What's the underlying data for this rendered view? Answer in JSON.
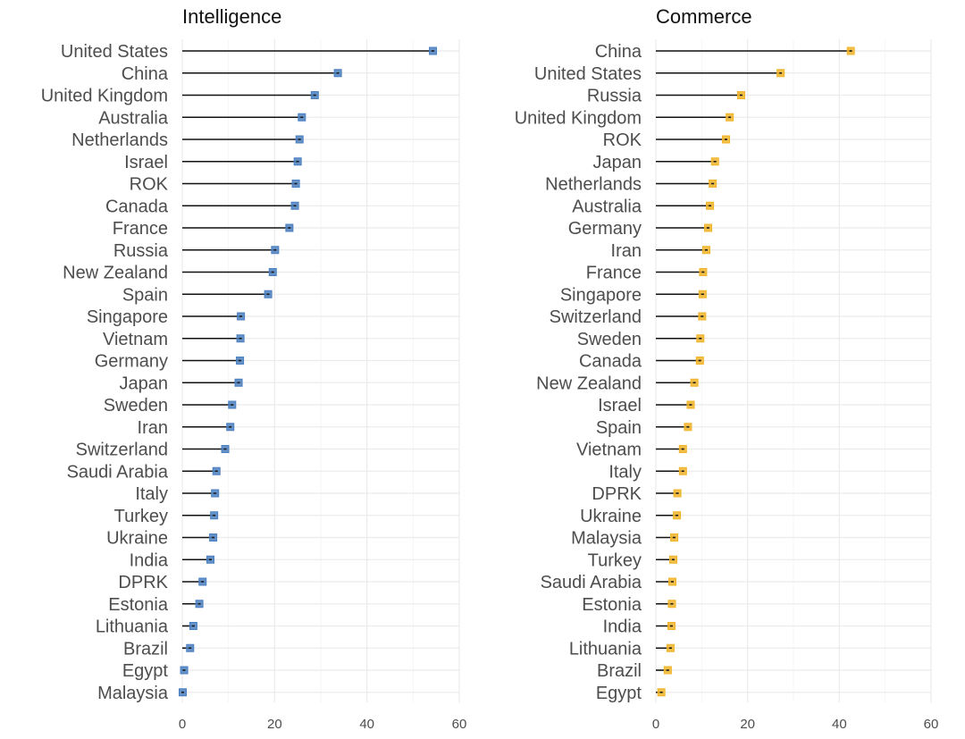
{
  "chart_data": [
    {
      "type": "lollipop",
      "title": "Intelligence",
      "xlabel": "",
      "ylabel": "",
      "xlim": [
        0,
        60
      ],
      "x_ticks": [
        0,
        20,
        40,
        60
      ],
      "grid": true,
      "color": "#4a7fc0",
      "categories": [
        "United States",
        "China",
        "United Kingdom",
        "Australia",
        "Netherlands",
        "Israel",
        "ROK",
        "Canada",
        "France",
        "Russia",
        "New Zealand",
        "Spain",
        "Singapore",
        "Vietnam",
        "Germany",
        "Japan",
        "Sweden",
        "Iran",
        "Switzerland",
        "Saudi Arabia",
        "Italy",
        "Turkey",
        "Ukraine",
        "India",
        "DPRK",
        "Estonia",
        "Lithuania",
        "Brazil",
        "Egypt",
        "Malaysia"
      ],
      "values": [
        54.3,
        33.7,
        28.7,
        25.9,
        25.4,
        25.0,
        24.6,
        24.4,
        23.2,
        20.1,
        19.6,
        18.6,
        12.7,
        12.6,
        12.5,
        12.2,
        10.8,
        10.4,
        9.3,
        7.4,
        7.1,
        6.9,
        6.7,
        6.1,
        4.4,
        3.7,
        2.4,
        1.7,
        0.4,
        0.1
      ]
    },
    {
      "type": "lollipop",
      "title": "Commerce",
      "xlabel": "",
      "ylabel": "",
      "xlim": [
        0,
        60
      ],
      "x_ticks": [
        0,
        20,
        40,
        60
      ],
      "grid": true,
      "color": "#f0b429",
      "categories": [
        "China",
        "United States",
        "Russia",
        "United Kingdom",
        "ROK",
        "Japan",
        "Netherlands",
        "Australia",
        "Germany",
        "Iran",
        "France",
        "Singapore",
        "Switzerland",
        "Sweden",
        "Canada",
        "New Zealand",
        "Israel",
        "Spain",
        "Vietnam",
        "Italy",
        "DPRK",
        "Ukraine",
        "Malaysia",
        "Turkey",
        "Saudi Arabia",
        "Estonia",
        "India",
        "Lithuania",
        "Brazil",
        "Egypt"
      ],
      "values": [
        42.5,
        27.2,
        18.6,
        16.1,
        15.3,
        12.9,
        12.4,
        11.8,
        11.4,
        11.0,
        10.3,
        10.2,
        10.1,
        9.7,
        9.6,
        8.4,
        7.6,
        7.0,
        5.9,
        5.9,
        4.7,
        4.6,
        4.0,
        3.8,
        3.6,
        3.5,
        3.4,
        3.2,
        2.6,
        1.2
      ]
    }
  ]
}
